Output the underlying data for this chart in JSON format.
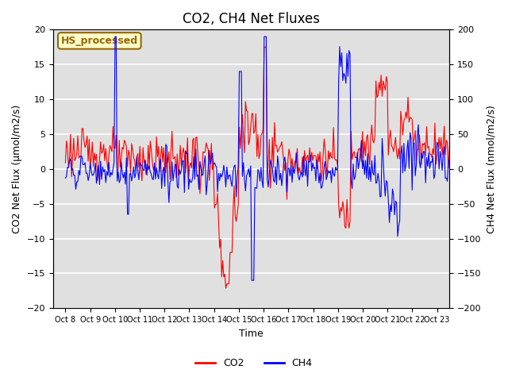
{
  "title": "CO2, CH4 Net Fluxes",
  "xlabel": "Time",
  "ylabel_left": "CO2 Net Flux (μmol/m2/s)",
  "ylabel_right": "CH4 Net Flux (nmol/m2/s)",
  "ylim_left": [
    -20,
    20
  ],
  "ylim_right": [
    -200,
    200
  ],
  "yticks_left": [
    -20,
    -15,
    -10,
    -5,
    0,
    5,
    10,
    15,
    20
  ],
  "yticks_right": [
    -200,
    -150,
    -100,
    -50,
    0,
    50,
    100,
    150,
    200
  ],
  "x_tick_labels": [
    "Oct 8",
    "Oct 9",
    "Oct 10",
    "Oct 11",
    "Oct 12",
    "Oct 13",
    "Oct 14",
    "Oct 15",
    "Oct 16",
    "Oct 17",
    "Oct 18",
    "Oct 19",
    "Oct 20",
    "Oct 21",
    "Oct 22",
    "Oct 23"
  ],
  "co2_color": "#FF0000",
  "ch4_color": "#0000FF",
  "background_color": "#E0E0E0",
  "annotation_text": "HS_processed",
  "annotation_bg": "#FFFFCC",
  "annotation_border": "#996600",
  "legend_co2": "CO2",
  "legend_ch4": "CH4",
  "grid_color": "#FFFFFF",
  "title_fontsize": 12
}
